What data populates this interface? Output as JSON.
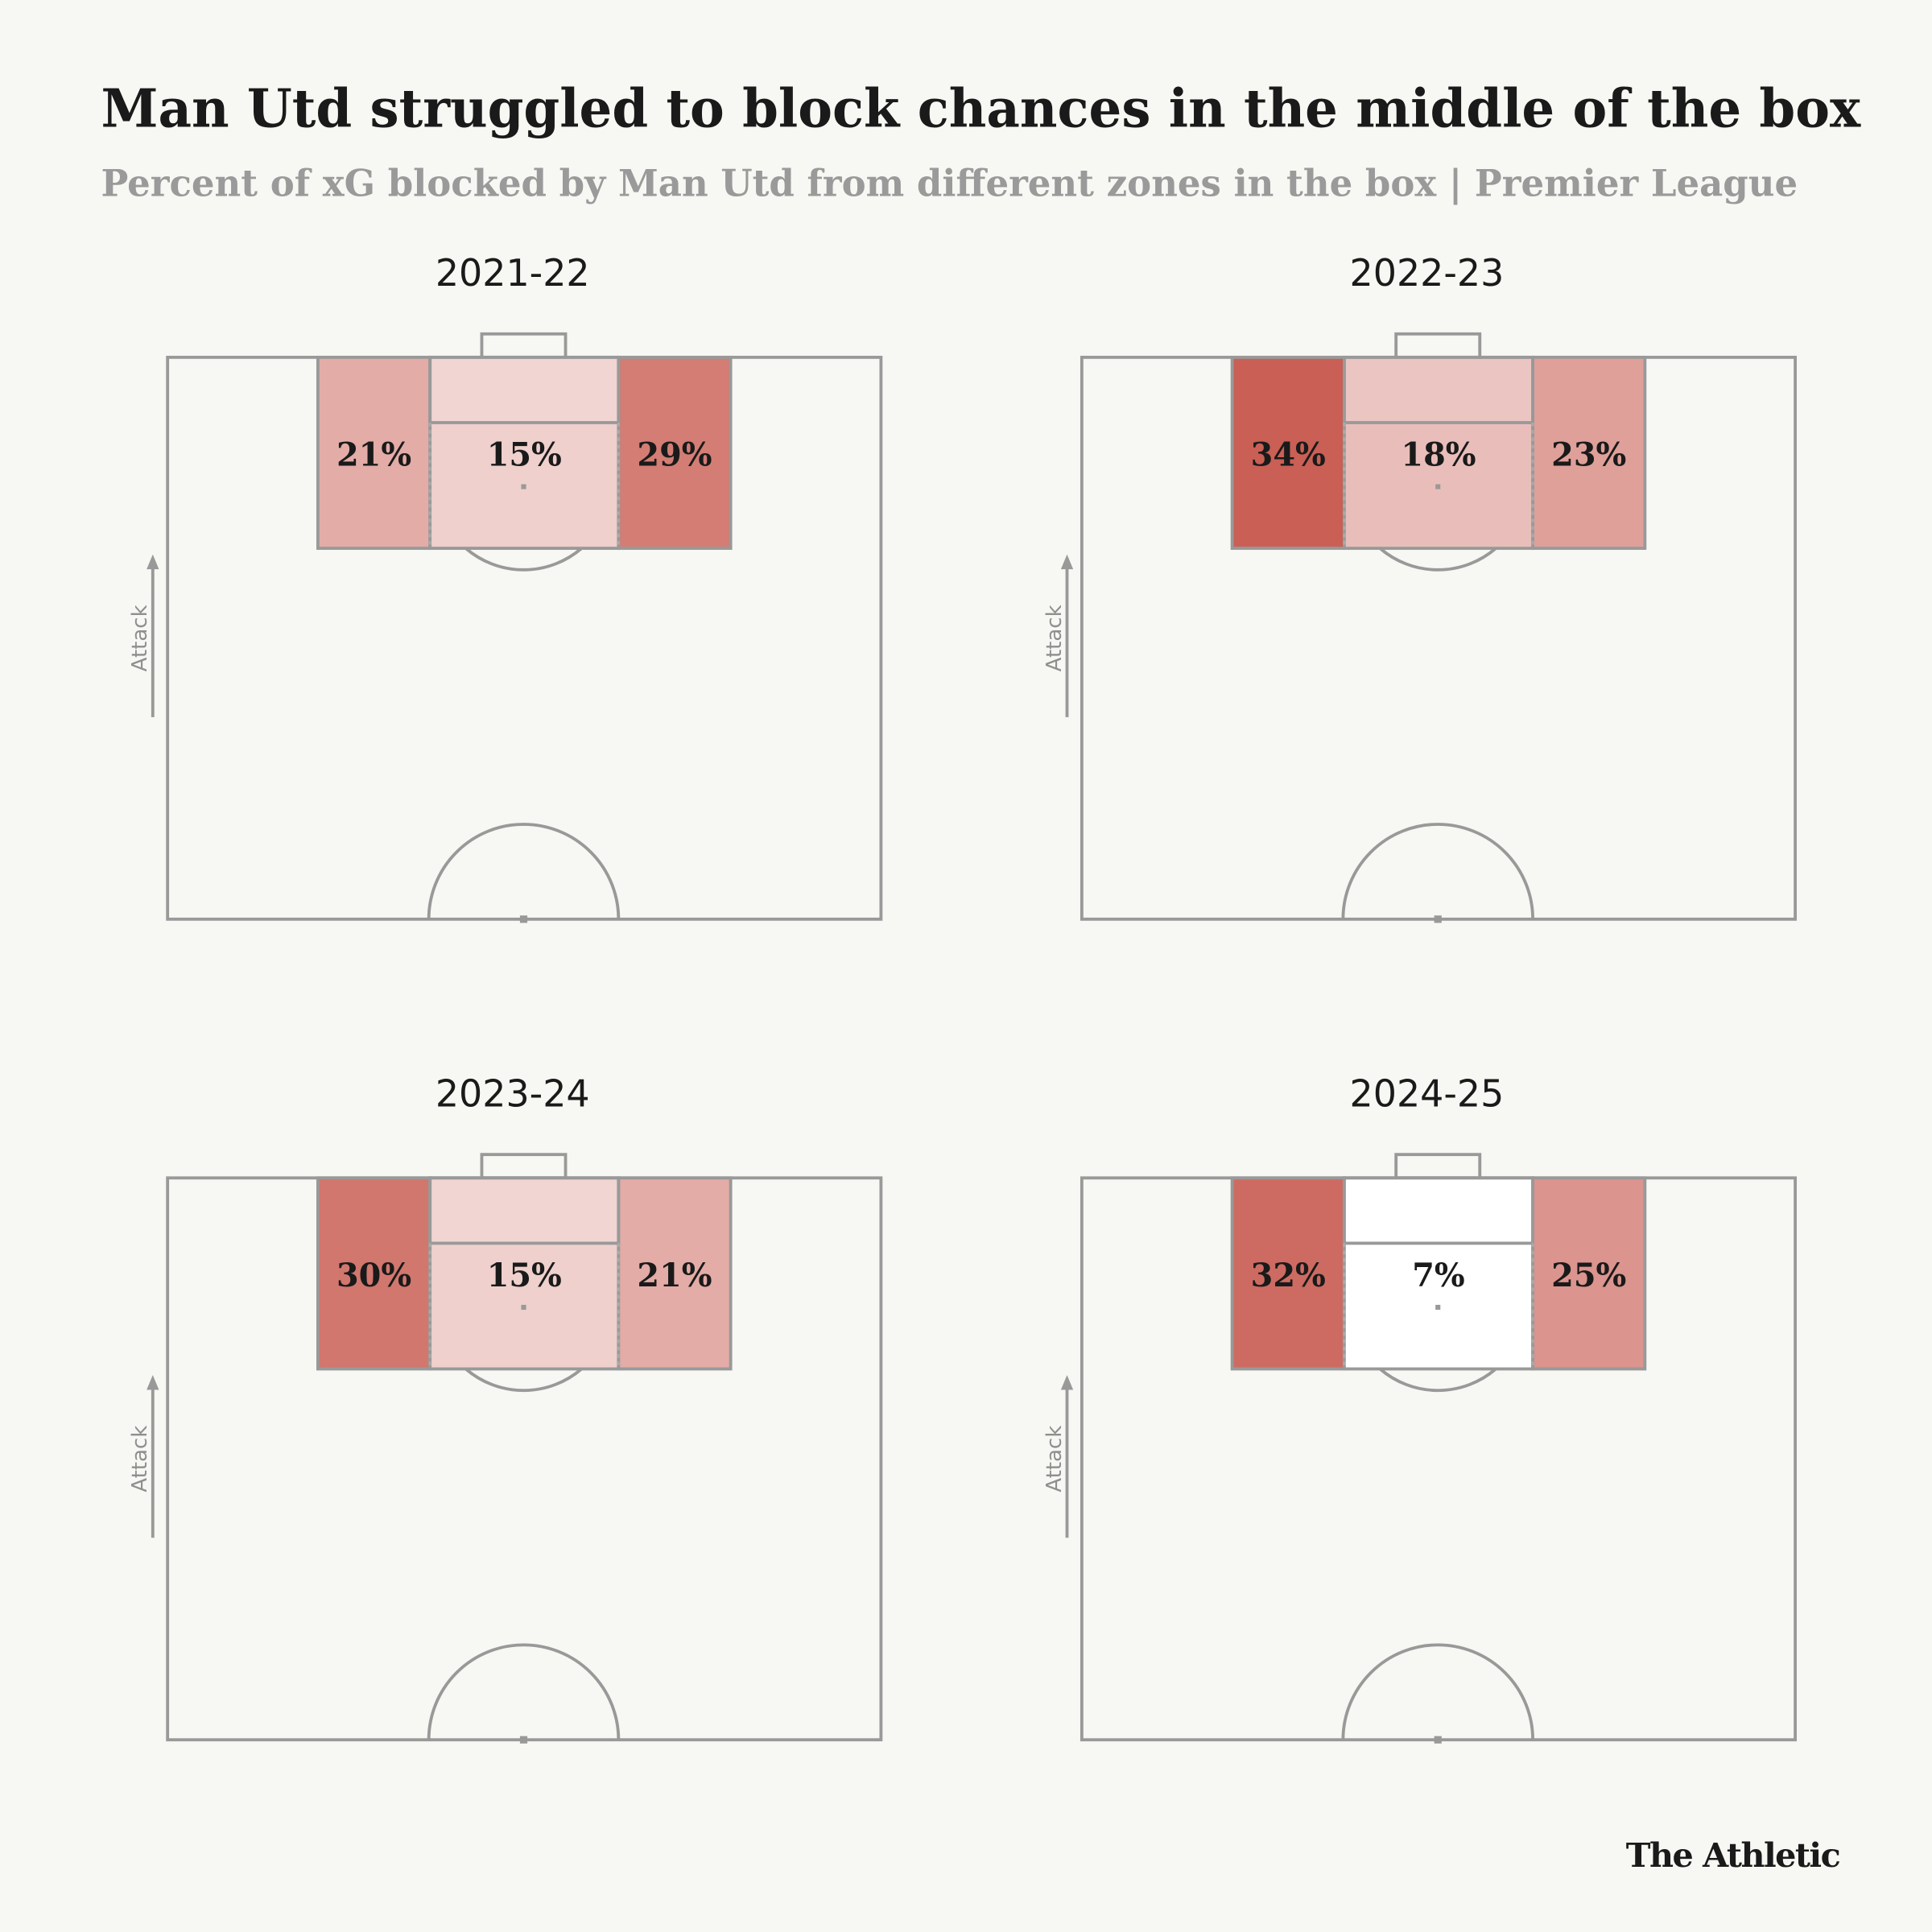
{
  "title": "Man Utd struggled to block chances in the middle of the box",
  "subtitle": "Percent of xG blocked by Man Utd from different zones in the box | Premier League",
  "source": "The Athletic",
  "chart_data": [
    {
      "type": "pitch-zones",
      "title": "2021-22",
      "y_label": "Attack",
      "values": [
        21,
        15,
        29
      ],
      "value_labels": [
        "21%",
        "15%",
        "29%"
      ]
    },
    {
      "type": "pitch-zones",
      "title": "2022-23",
      "y_label": "Attack",
      "values": [
        34,
        18,
        23
      ],
      "value_labels": [
        "34%",
        "18%",
        "23%"
      ]
    },
    {
      "type": "pitch-zones",
      "title": "2023-24",
      "y_label": "Attack",
      "values": [
        30,
        15,
        21
      ],
      "value_labels": [
        "30%",
        "15%",
        "21%"
      ]
    },
    {
      "type": "pitch-zones",
      "title": "2024-25",
      "y_label": "Attack",
      "values": [
        32,
        7,
        25
      ],
      "value_labels": [
        "32%",
        "7%",
        "25%"
      ]
    }
  ]
}
